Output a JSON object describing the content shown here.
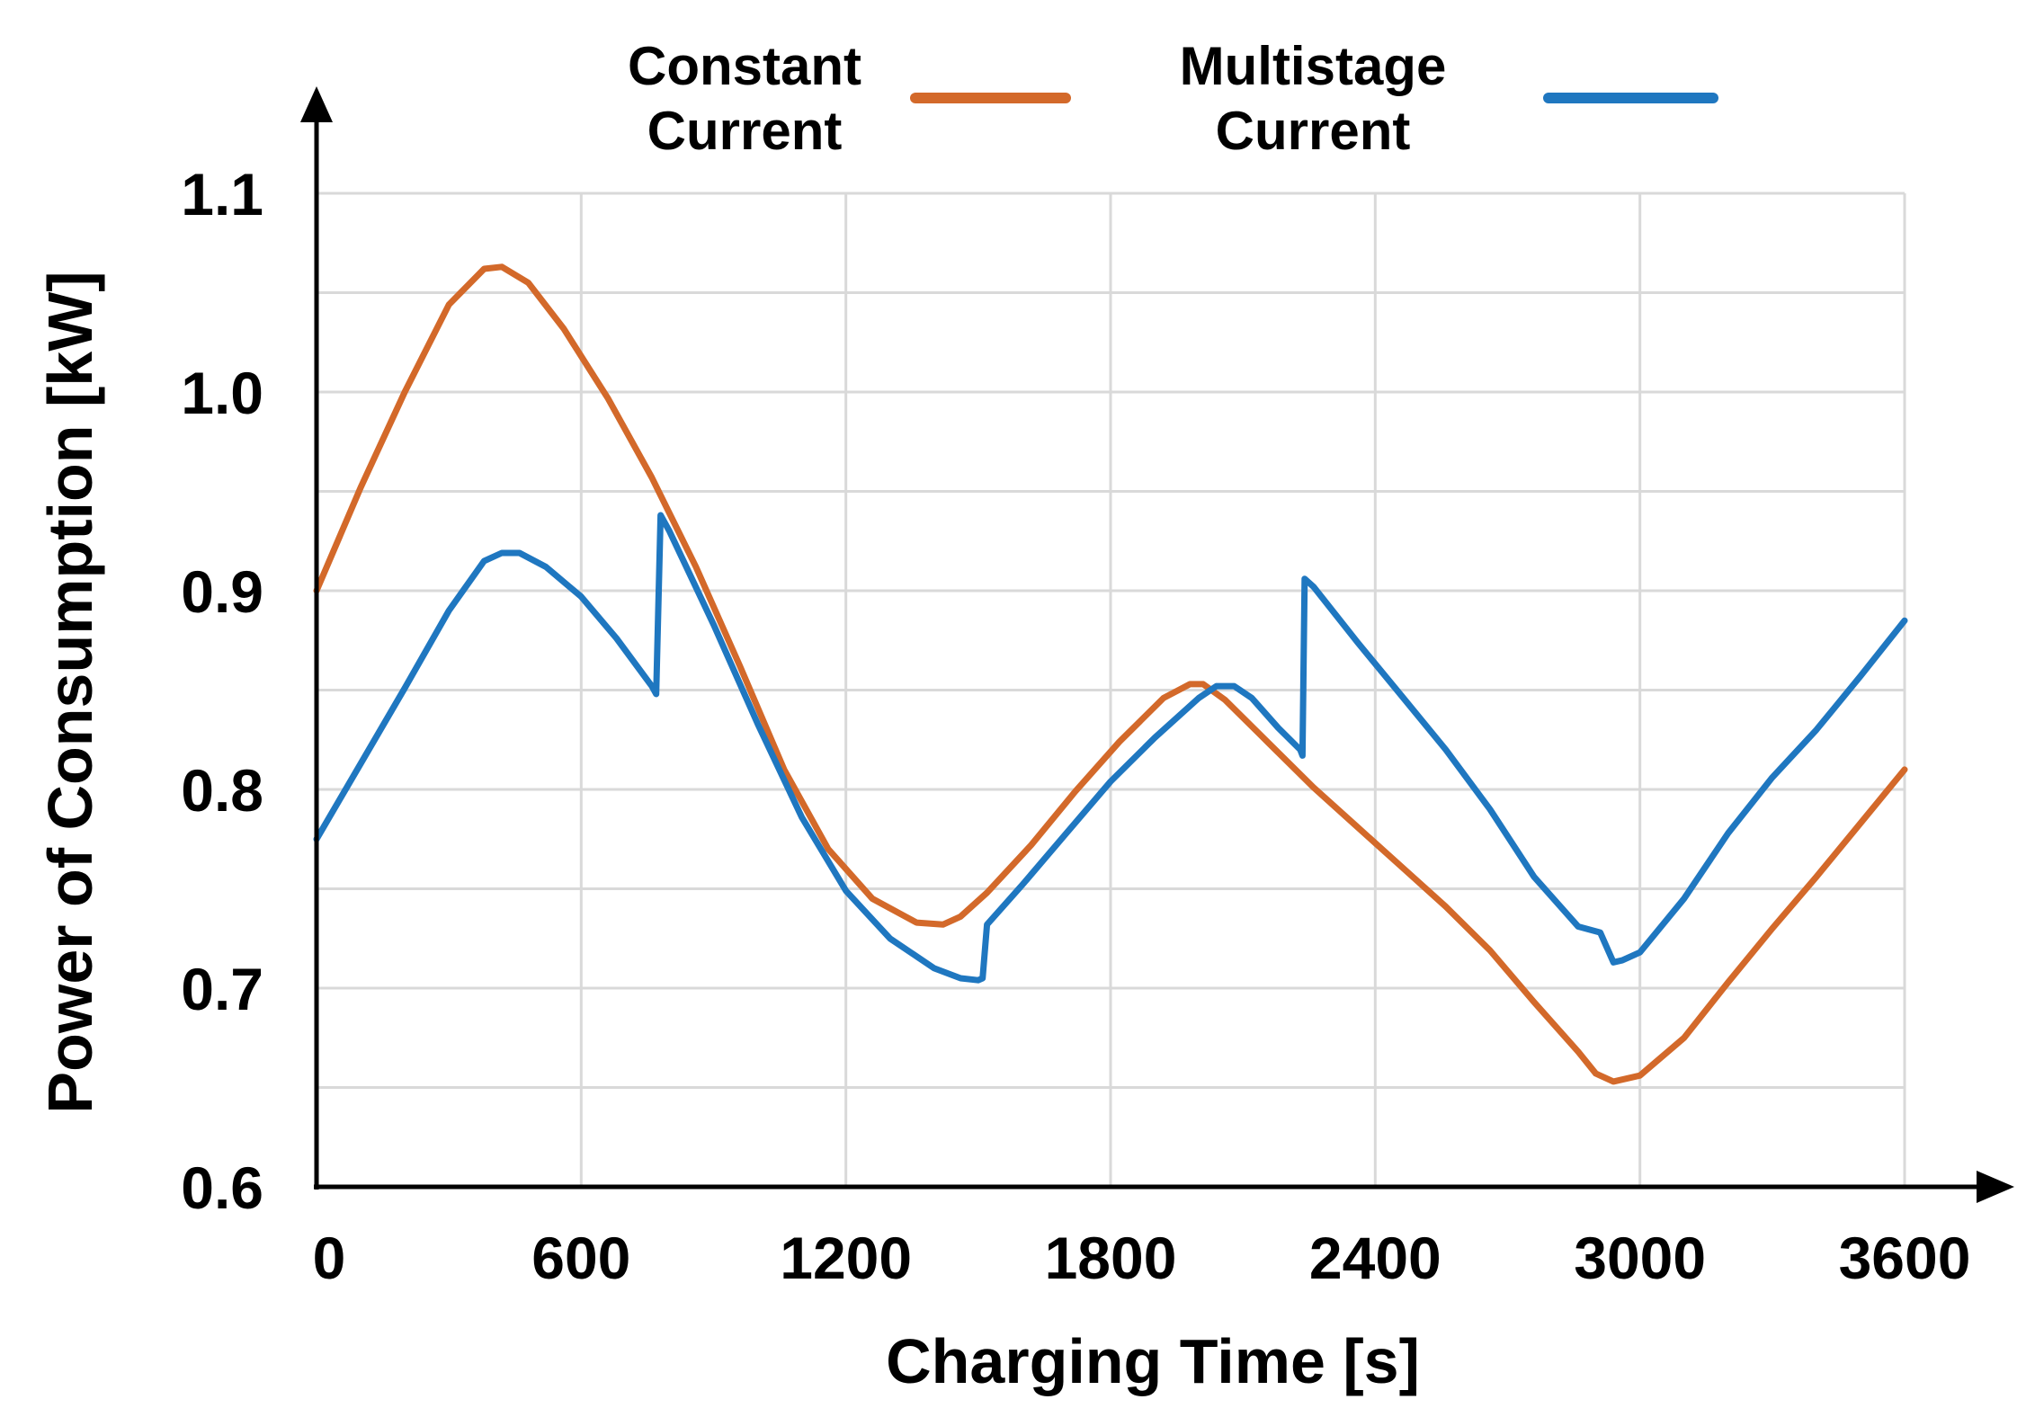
{
  "chart_data": {
    "type": "line",
    "xlabel": "Charging Time [s]",
    "ylabel": "Power of Consumption [kW]",
    "xlim": [
      0,
      3600
    ],
    "ylim": [
      0.6,
      1.1
    ],
    "xticks": [
      0,
      600,
      1200,
      1800,
      2400,
      3000,
      3600
    ],
    "xtick_labels": [
      "0",
      "600",
      "1200",
      "1800",
      "2400",
      "3000",
      "3600"
    ],
    "yticks": [
      0.6,
      0.7,
      0.8,
      0.9,
      1.0,
      1.1
    ],
    "ytick_labels": [
      "0.6",
      "0.7",
      "0.8",
      "0.9",
      "1.0",
      "1.1"
    ],
    "grid": true,
    "legend_position": "top",
    "series": [
      {
        "name": "Constant Current",
        "legend_lines": [
          "Constant",
          "Current"
        ],
        "color": "#d3692a",
        "x": [
          0,
          100,
          200,
          300,
          380,
          420,
          480,
          560,
          660,
          760,
          860,
          960,
          1060,
          1160,
          1260,
          1360,
          1420,
          1460,
          1520,
          1620,
          1720,
          1820,
          1920,
          1980,
          2010,
          2060,
          2160,
          2260,
          2360,
          2460,
          2560,
          2660,
          2760,
          2860,
          2900,
          2940,
          3000,
          3100,
          3200,
          3300,
          3400,
          3500,
          3600
        ],
        "y": [
          0.9,
          0.952,
          1.0,
          1.044,
          1.062,
          1.063,
          1.055,
          1.032,
          0.997,
          0.957,
          0.912,
          0.862,
          0.81,
          0.77,
          0.745,
          0.733,
          0.732,
          0.736,
          0.748,
          0.772,
          0.799,
          0.824,
          0.846,
          0.853,
          0.853,
          0.845,
          0.823,
          0.801,
          0.781,
          0.761,
          0.741,
          0.719,
          0.693,
          0.668,
          0.657,
          0.653,
          0.656,
          0.675,
          0.703,
          0.73,
          0.756,
          0.783,
          0.81
        ]
      },
      {
        "name": "Multistage Current",
        "legend_lines": [
          "Multistage",
          "Current"
        ],
        "color": "#1f77c0",
        "x": [
          0,
          100,
          200,
          300,
          380,
          420,
          460,
          520,
          600,
          680,
          760,
          770,
          780,
          800,
          900,
          1000,
          1100,
          1200,
          1300,
          1400,
          1460,
          1500,
          1510,
          1520,
          1600,
          1700,
          1800,
          1900,
          2000,
          2040,
          2080,
          2120,
          2180,
          2230,
          2235,
          2240,
          2260,
          2360,
          2460,
          2560,
          2660,
          2760,
          2860,
          2910,
          2920,
          2940,
          2960,
          3000,
          3100,
          3200,
          3300,
          3400,
          3500,
          3600
        ],
        "y": [
          0.775,
          0.813,
          0.851,
          0.89,
          0.915,
          0.919,
          0.919,
          0.912,
          0.897,
          0.876,
          0.852,
          0.848,
          0.938,
          0.93,
          0.883,
          0.833,
          0.786,
          0.749,
          0.725,
          0.71,
          0.705,
          0.704,
          0.705,
          0.732,
          0.752,
          0.778,
          0.804,
          0.826,
          0.846,
          0.852,
          0.852,
          0.846,
          0.831,
          0.82,
          0.817,
          0.906,
          0.902,
          0.874,
          0.847,
          0.82,
          0.79,
          0.756,
          0.731,
          0.728,
          0.723,
          0.713,
          0.714,
          0.718,
          0.745,
          0.778,
          0.806,
          0.83,
          0.857,
          0.885
        ]
      }
    ]
  }
}
